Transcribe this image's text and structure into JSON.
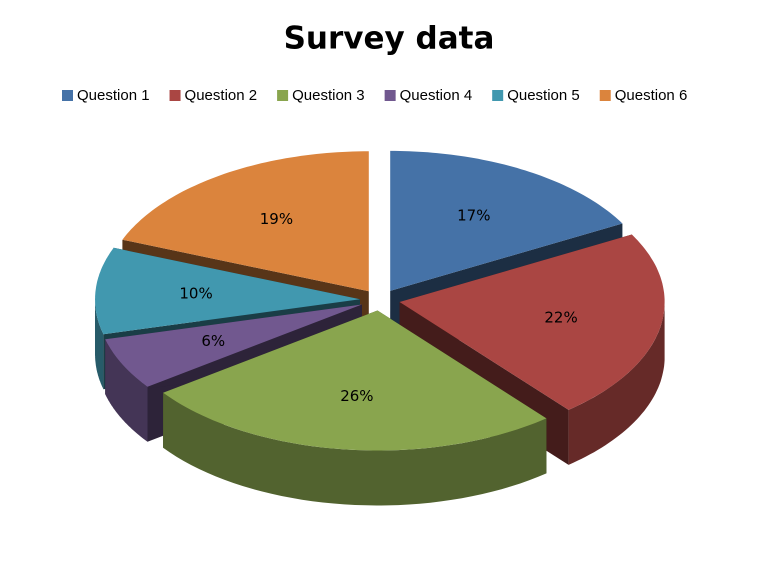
{
  "chart_data": {
    "type": "pie",
    "title": "Survey data",
    "categories": [
      "Question 1",
      "Question 2",
      "Question 3",
      "Question 4",
      "Question 5",
      "Question 6"
    ],
    "values": [
      17,
      22,
      26,
      6,
      10,
      19
    ],
    "value_labels": [
      "17%",
      "22%",
      "26%",
      "6%",
      "10%",
      "19%"
    ],
    "colors": [
      "#4572a7",
      "#aa4643",
      "#89a54e",
      "#71588f",
      "#4198af",
      "#db843d"
    ],
    "legend": "top"
  }
}
